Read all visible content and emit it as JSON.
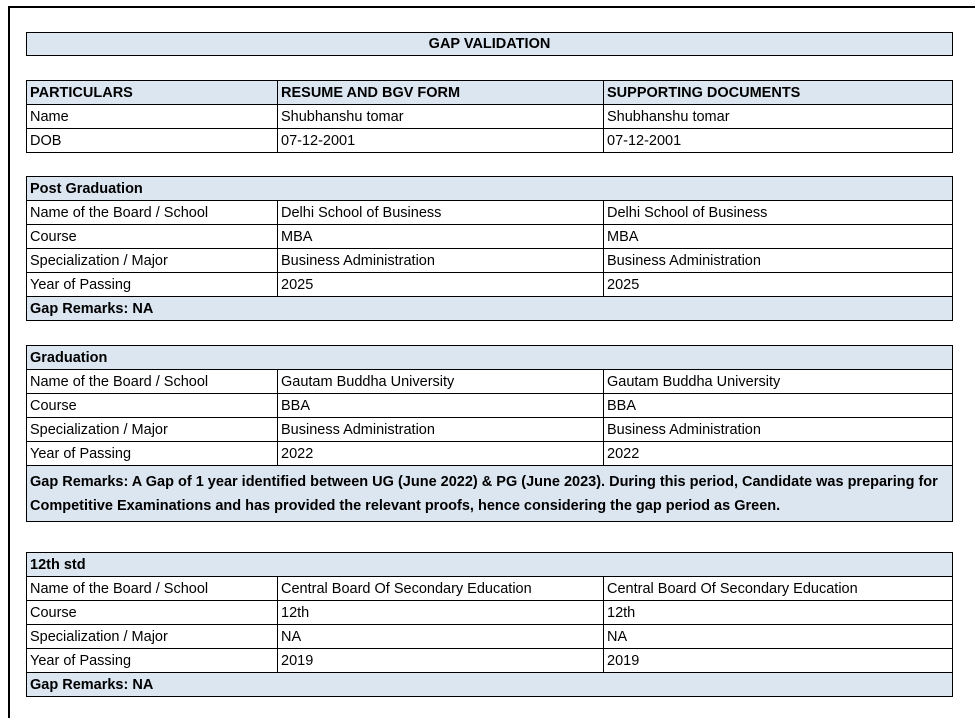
{
  "title": "GAP VALIDATION",
  "header_table": {
    "columns": [
      "PARTICULARS",
      "RESUME AND BGV FORM",
      "SUPPORTING DOCUMENTS"
    ],
    "rows": [
      [
        "Name",
        "Shubhanshu tomar",
        "Shubhanshu tomar"
      ],
      [
        "DOB",
        "07-12-2001",
        "07-12-2001"
      ]
    ]
  },
  "sections": [
    {
      "title": "Post Graduation",
      "rows": [
        [
          "Name of the Board / School",
          "Delhi School of Business",
          "Delhi School of Business"
        ],
        [
          "Course",
          "MBA",
          "MBA"
        ],
        [
          "Specialization / Major",
          "Business Administration",
          "Business Administration"
        ],
        [
          "Year of Passing",
          "2025",
          "2025"
        ]
      ],
      "remarks": "Gap Remarks: NA"
    },
    {
      "title": "Graduation",
      "rows": [
        [
          "Name of the Board / School",
          "Gautam Buddha University",
          "Gautam Buddha University"
        ],
        [
          "Course",
          "BBA",
          "BBA"
        ],
        [
          "Specialization / Major",
          "Business Administration",
          "Business Administration"
        ],
        [
          "Year of Passing",
          "2022",
          "2022"
        ]
      ],
      "remarks": "Gap Remarks: A Gap of 1 year identified between UG (June 2022) & PG (June 2023). During this period, Candidate was preparing for Competitive Examinations and has provided the relevant proofs, hence considering the gap period as Green."
    },
    {
      "title": "12th std",
      "rows": [
        [
          "Name of the Board / School",
          "Central Board Of Secondary Education",
          "Central Board Of Secondary Education"
        ],
        [
          "Course",
          "12th",
          "12th"
        ],
        [
          "Specialization / Major",
          "NA",
          "NA"
        ],
        [
          "Year of Passing",
          "2019",
          "2019"
        ]
      ],
      "remarks": "Gap Remarks: NA"
    }
  ]
}
